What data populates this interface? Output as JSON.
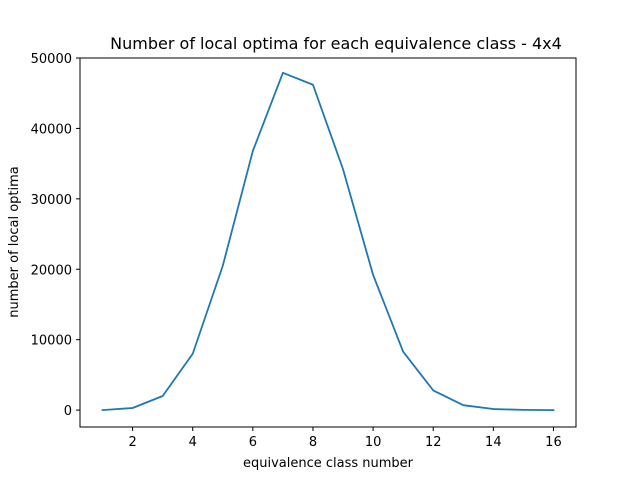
{
  "chart_data": {
    "type": "line",
    "title": "Number of local optima for each equivalence class - 4x4",
    "xlabel": "equivalence class number",
    "ylabel": "number of local optima",
    "xlim": [
      0.25,
      16.75
    ],
    "ylim": [
      -2400,
      50000
    ],
    "xticks": [
      2,
      4,
      6,
      8,
      10,
      12,
      14,
      16
    ],
    "yticks": [
      0,
      10000,
      20000,
      30000,
      40000,
      50000
    ],
    "grid": false,
    "series": [
      {
        "color": "#1f77b4",
        "x": [
          1,
          2,
          3,
          4,
          5,
          6,
          7,
          8,
          9,
          10,
          11,
          12,
          13,
          14,
          15,
          16
        ],
        "y": [
          0,
          300,
          2000,
          8000,
          20500,
          36800,
          47900,
          46200,
          34200,
          19200,
          8300,
          2800,
          700,
          150,
          30,
          0
        ]
      }
    ]
  }
}
